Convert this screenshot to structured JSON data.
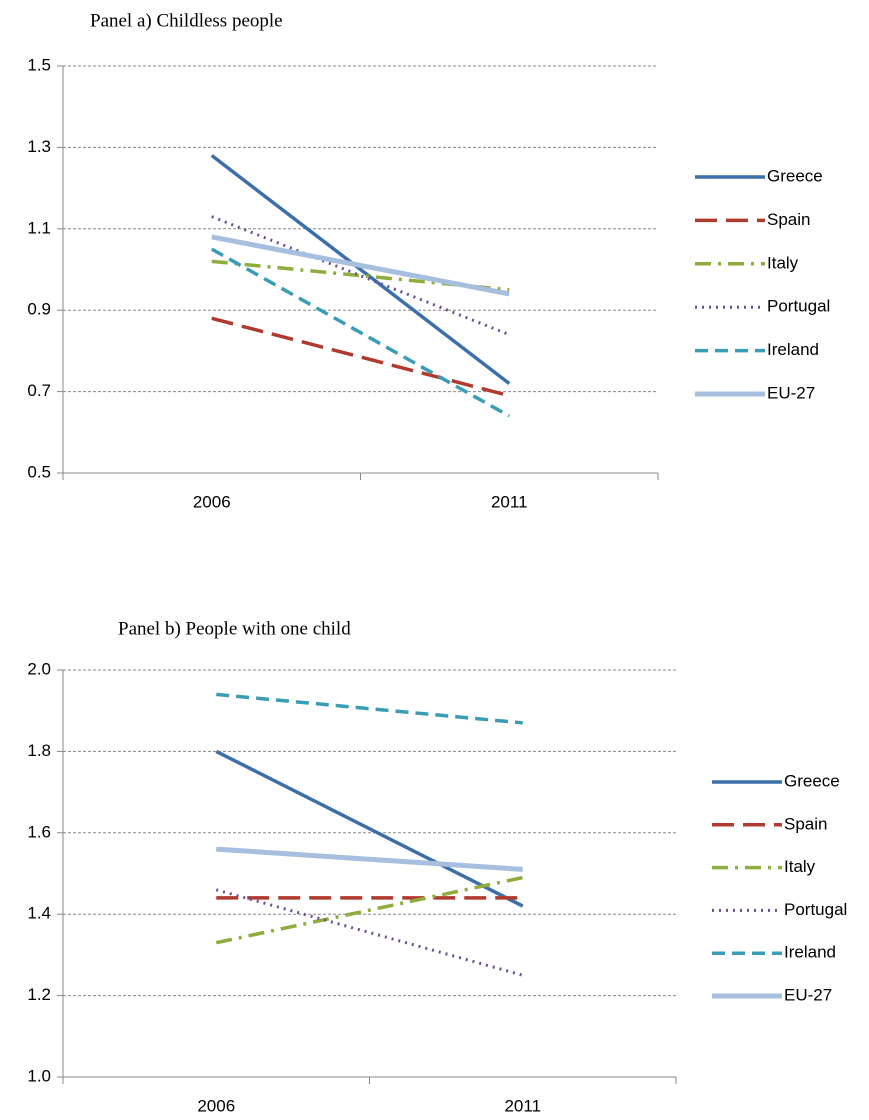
{
  "chart_data": [
    {
      "type": "line",
      "title": "Panel a) Childless people",
      "categories": [
        "2006",
        "2011"
      ],
      "ylim": [
        0.5,
        1.5
      ],
      "yticks": [
        0.5,
        0.7,
        0.9,
        1.1,
        1.3,
        1.5
      ],
      "grid": true,
      "legend": "right",
      "series": [
        {
          "name": "Greece",
          "color": "#3c6eaa",
          "values": [
            1.28,
            0.72
          ]
        },
        {
          "name": "Spain",
          "color": "#b03a2e",
          "values": [
            0.88,
            0.69
          ]
        },
        {
          "name": "Italy",
          "color": "#8fad3c",
          "values": [
            1.02,
            0.95
          ]
        },
        {
          "name": "Portugal",
          "color": "#6b4f96",
          "values": [
            1.13,
            0.84
          ]
        },
        {
          "name": "Ireland",
          "color": "#3a9db5",
          "values": [
            1.05,
            0.64
          ]
        },
        {
          "name": "EU-27",
          "color": "#a6bfdf",
          "values": [
            1.08,
            0.94
          ]
        }
      ]
    },
    {
      "type": "line",
      "title": "Panel b) People with one child",
      "categories": [
        "2006",
        "2011"
      ],
      "ylim": [
        1,
        2
      ],
      "yticks": [
        {
          "value": 1,
          "label": "1.0"
        },
        1.2,
        1.4,
        1.6,
        1.8,
        {
          "value": 2,
          "label": "2.0"
        }
      ],
      "grid": true,
      "legend": "right",
      "series": [
        {
          "name": "Greece",
          "color": "#3c6eaa",
          "values": [
            1.8,
            1.42
          ]
        },
        {
          "name": "Spain",
          "color": "#b03a2e",
          "values": [
            1.44,
            1.44
          ]
        },
        {
          "name": "Italy",
          "color": "#8fad3c",
          "values": [
            1.33,
            1.49
          ]
        },
        {
          "name": "Portugal",
          "color": "#6b4f96",
          "values": [
            1.46,
            1.25
          ]
        },
        {
          "name": "Ireland",
          "color": "#3a9db5",
          "values": [
            1.94,
            1.87
          ]
        },
        {
          "name": "EU-27",
          "color": "#a6bfdf",
          "values": [
            1.56,
            1.51
          ]
        }
      ]
    }
  ]
}
